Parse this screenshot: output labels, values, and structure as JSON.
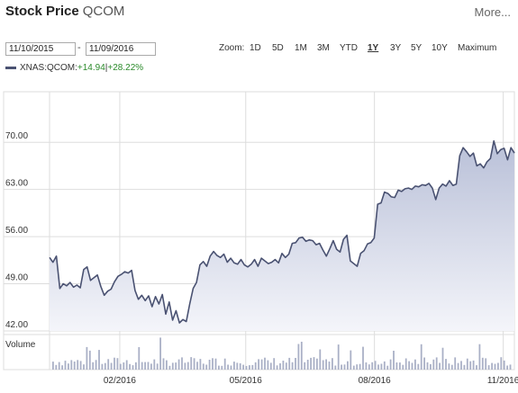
{
  "header": {
    "title": "Stock Price",
    "symbol": "QCOM",
    "more": "More..."
  },
  "range": {
    "from": "11/10/2015",
    "to": "11/09/2016",
    "separator": "-"
  },
  "zoom": {
    "label": "Zoom:",
    "options": [
      "1D",
      "5D",
      "1M",
      "3M",
      "YTD",
      "1Y",
      "3Y",
      "5Y",
      "10Y",
      "Maximum"
    ],
    "active": "1Y"
  },
  "legend": {
    "series": "XNAS:QCOM:",
    "change_abs": "+14.94",
    "change_pct": "+28.22%",
    "separator": "|"
  },
  "colors": {
    "line": "#4a5272",
    "area_top": "#b9c0d8",
    "area_bottom": "#f4f5fa",
    "volume": "#aab0c6",
    "grid": "#dddddd",
    "change": "#2a8a2a"
  },
  "chart_data": {
    "type": "area",
    "x_start": "11/10/2015",
    "x_end": "11/09/2016",
    "xticks": [
      {
        "label": "02/2016",
        "date": "2016-02-01"
      },
      {
        "label": "05/2016",
        "date": "2016-05-01"
      },
      {
        "label": "08/2016",
        "date": "2016-08-01"
      },
      {
        "label": "11/2016",
        "date": "2016-11-01"
      }
    ],
    "yticks": [
      "42.00",
      "49.00",
      "56.00",
      "63.00",
      "70.00"
    ],
    "ylim": [
      42,
      77.5
    ],
    "grid": true,
    "volume_label": "Volume",
    "series": [
      {
        "values": [
          52.9,
          52.2,
          53.1,
          48.3,
          49.0,
          48.7,
          49.2,
          48.5,
          48.8,
          48.4,
          51.1,
          51.5,
          49.5,
          49.9,
          50.3,
          48.6,
          47.3,
          47.9,
          48.2,
          49.3,
          50.1,
          50.4,
          50.8,
          50.6,
          51.0,
          48.0,
          46.7,
          47.3,
          46.5,
          47.2,
          45.6,
          47.1,
          46.0,
          47.4,
          44.5,
          46.3,
          43.6,
          45.0,
          43.2,
          43.7,
          43.4,
          46.0,
          48.3,
          49.2,
          51.8,
          52.3,
          51.6,
          53.1,
          53.8,
          53.2,
          52.9,
          53.4,
          52.2,
          52.8,
          52.1,
          51.9,
          52.6,
          51.8,
          51.5,
          51.9,
          52.6,
          51.6,
          52.8,
          52.4,
          52.0,
          52.2,
          52.6,
          52.1,
          53.5,
          52.9,
          53.4,
          55.0,
          55.1,
          55.8,
          55.9,
          55.3,
          55.5,
          55.4,
          54.8,
          55.0,
          54.0,
          53.1,
          54.2,
          55.4,
          54.1,
          53.7,
          55.6,
          56.2,
          52.4,
          52.0,
          51.6,
          53.5,
          53.9,
          54.9,
          55.1,
          55.8,
          60.8,
          61.0,
          62.6,
          62.4,
          61.9,
          61.8,
          62.9,
          62.7,
          63.1,
          63.2,
          63.0,
          63.5,
          63.4,
          63.7,
          63.6,
          63.9,
          63.2,
          61.5,
          63.2,
          63.8,
          63.5,
          64.3,
          63.6,
          63.8,
          68.0,
          69.2,
          68.6,
          67.9,
          68.4,
          66.5,
          66.8,
          66.2,
          67.1,
          67.6,
          70.2,
          68.3,
          68.9,
          69.1,
          67.4,
          69.2,
          68.4
        ]
      }
    ]
  }
}
